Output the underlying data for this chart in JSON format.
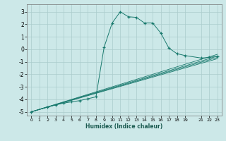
{
  "xlabel": "Humidex (Indice chaleur)",
  "bg_color": "#cce8e8",
  "grid_color": "#aacccc",
  "line_color": "#1a7a6e",
  "xlim": [
    -0.5,
    23.5
  ],
  "ylim": [
    -5.3,
    3.6
  ],
  "xticks": [
    0,
    1,
    2,
    3,
    4,
    5,
    6,
    7,
    8,
    9,
    10,
    11,
    12,
    13,
    14,
    15,
    16,
    17,
    18,
    19,
    21,
    22,
    23
  ],
  "yticks": [
    -5,
    -4,
    -3,
    -2,
    -1,
    0,
    1,
    2,
    3
  ],
  "main_x": [
    0,
    2,
    3,
    4,
    5,
    6,
    7,
    8,
    9,
    10,
    11,
    12,
    13,
    14,
    15,
    16,
    17,
    18,
    19,
    21,
    22,
    23
  ],
  "main_y": [
    -5.0,
    -4.6,
    -4.45,
    -4.3,
    -4.2,
    -4.1,
    -3.95,
    -3.8,
    0.15,
    2.1,
    3.0,
    2.6,
    2.55,
    2.1,
    2.1,
    1.3,
    0.1,
    -0.35,
    -0.5,
    -0.7,
    -0.65,
    -0.55
  ],
  "linear_lines": [
    {
      "x": [
        0,
        23
      ],
      "y": [
        -5.0,
        -0.4
      ]
    },
    {
      "x": [
        0,
        23
      ],
      "y": [
        -5.0,
        -0.55
      ]
    },
    {
      "x": [
        0,
        23
      ],
      "y": [
        -5.0,
        -0.65
      ]
    },
    {
      "x": [
        0,
        23
      ],
      "y": [
        -5.0,
        -0.75
      ]
    }
  ]
}
